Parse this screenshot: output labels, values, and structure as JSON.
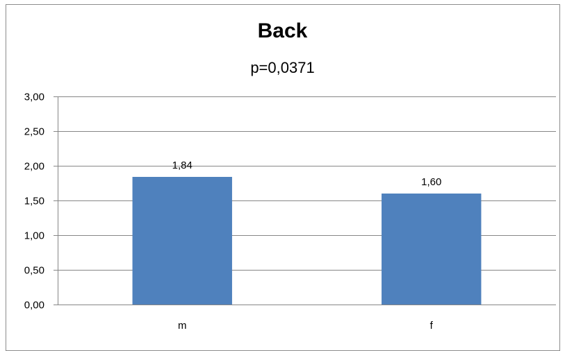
{
  "colors": {
    "bar": "#4f81bd",
    "gridline": "#868686",
    "axis": "#868686"
  },
  "chart_data": {
    "type": "bar",
    "title": "Back",
    "subtitle": "p=0,0371",
    "categories": [
      "m",
      "f"
    ],
    "values": [
      1.84,
      1.6
    ],
    "data_labels": [
      "1,84",
      "1,60"
    ],
    "ylim": [
      0,
      3
    ],
    "yticks": [
      "0,00",
      "0,50",
      "1,00",
      "1,50",
      "2,00",
      "2,50",
      "3,00"
    ],
    "ytick_values": [
      0,
      0.5,
      1,
      1.5,
      2,
      2.5,
      3
    ],
    "grid": true,
    "legend": "none"
  }
}
